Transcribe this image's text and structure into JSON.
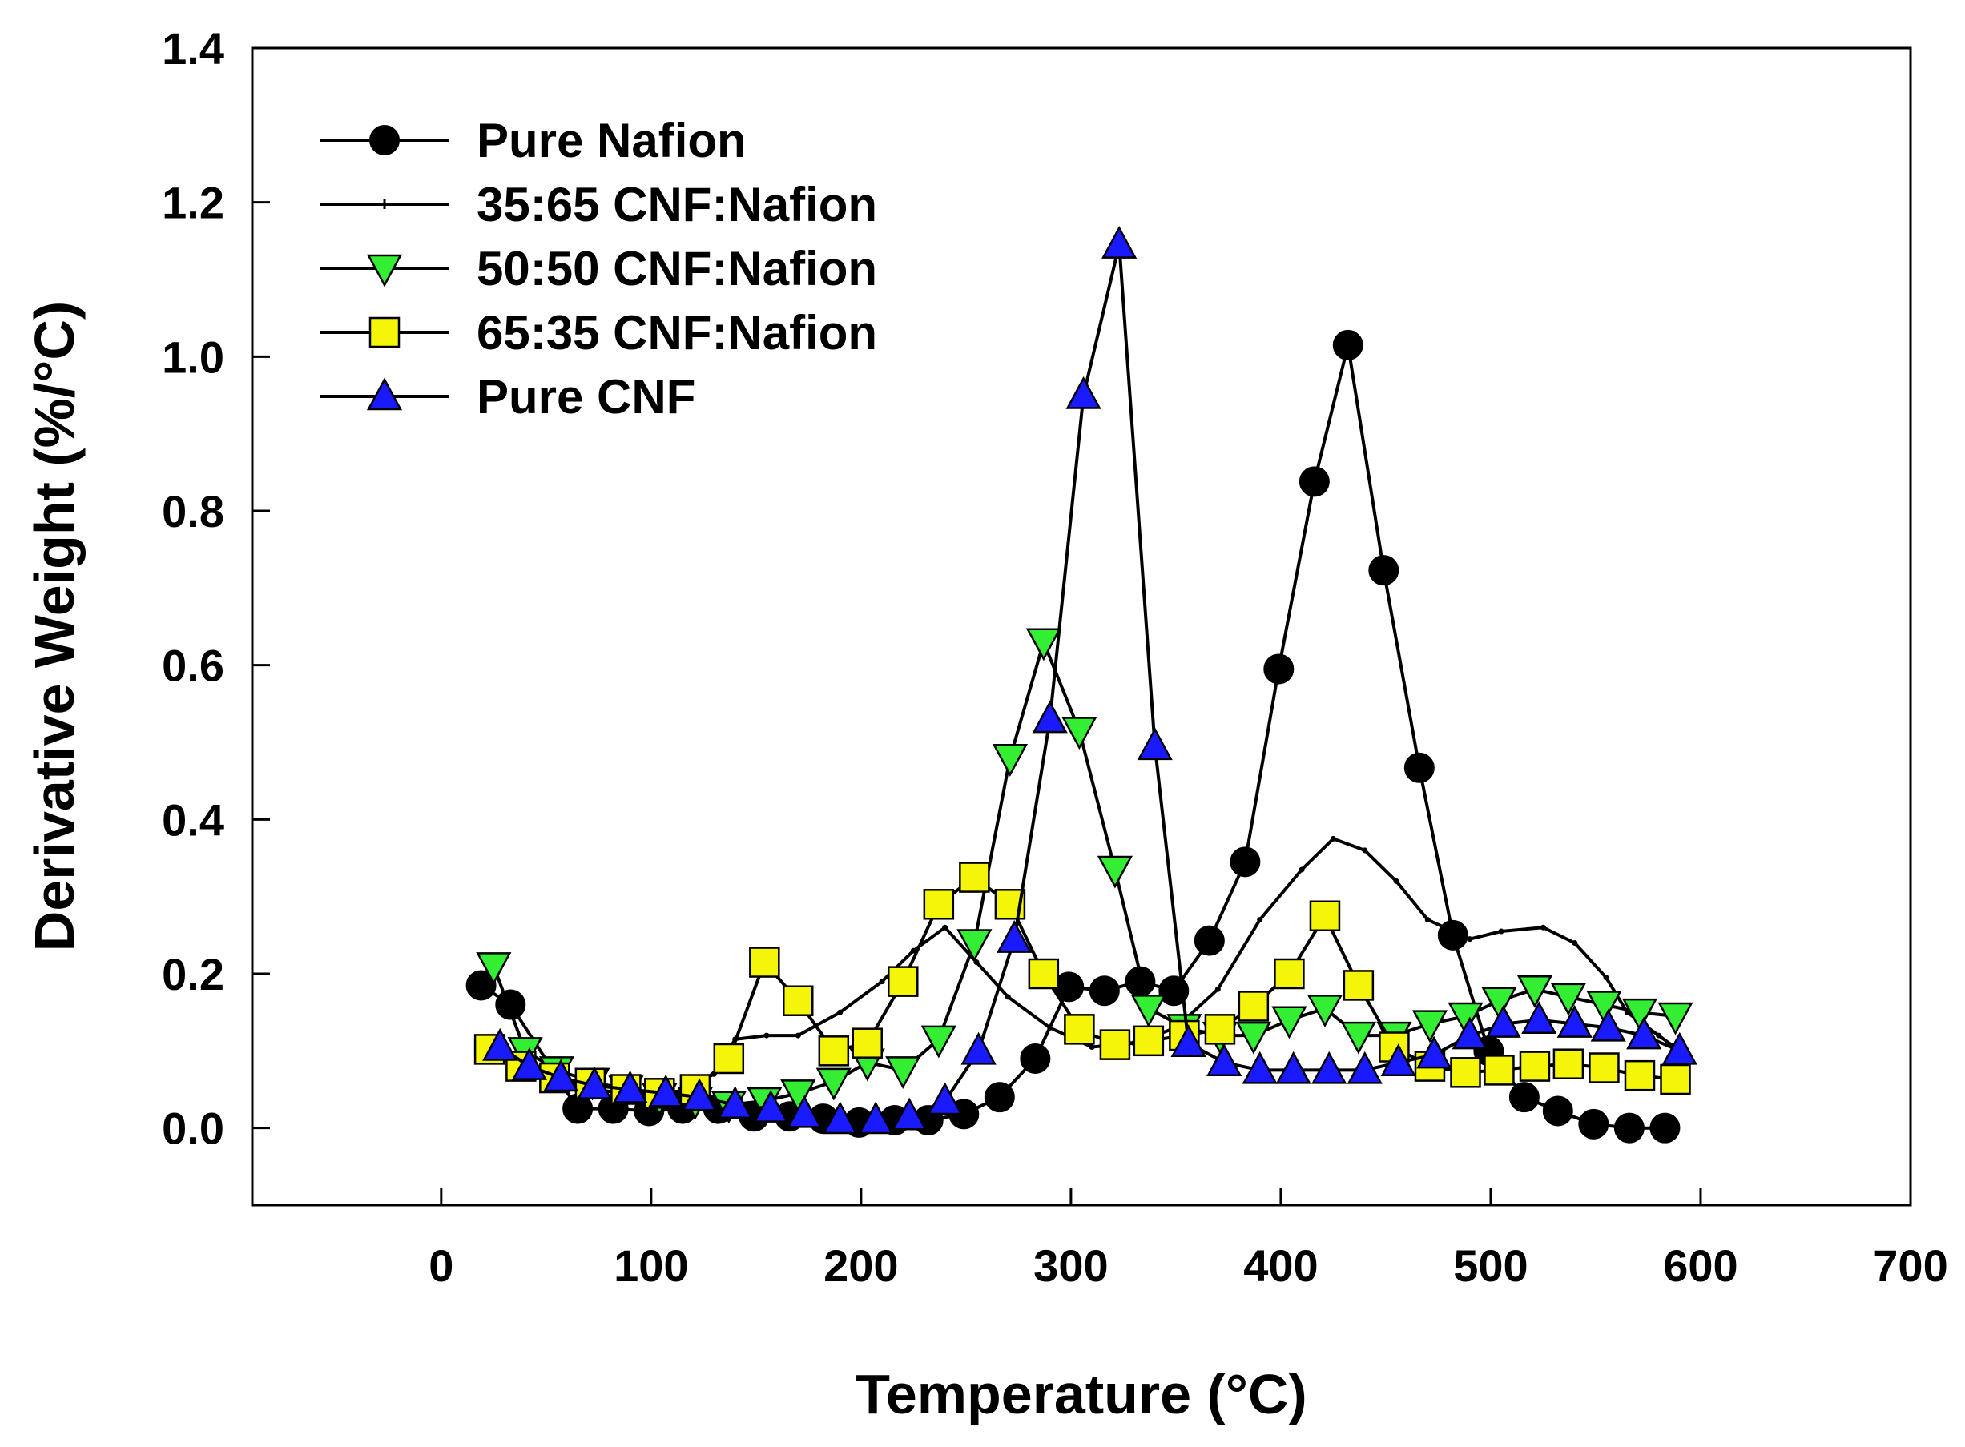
{
  "chart_data": {
    "type": "line",
    "title": "",
    "xlabel": "Temperature (°C)",
    "ylabel": "Derivative Weight (%/°C)",
    "xlim": [
      -90,
      700
    ],
    "ylim": [
      -0.1,
      1.4
    ],
    "xticks": [
      0,
      100,
      200,
      300,
      400,
      500,
      600,
      700
    ],
    "xtick_labels": [
      "0",
      "100",
      "200",
      "300",
      "400",
      "500",
      "600",
      "700"
    ],
    "yticks": [
      0.0,
      0.2,
      0.4,
      0.6,
      0.8,
      1.0,
      1.2,
      1.4
    ],
    "ytick_labels": [
      "0.0",
      "0.2",
      "0.4",
      "0.6",
      "0.8",
      "1.0",
      "1.2",
      "1.4"
    ],
    "legend_position": "top-left",
    "series": [
      {
        "name": "Pure Nafion",
        "marker": "circle",
        "fill": "#000000",
        "x": [
          19,
          33,
          65,
          82,
          99,
          115,
          132,
          149,
          166,
          182,
          199,
          216,
          232,
          249,
          266,
          283,
          299,
          316,
          333,
          349,
          366,
          383,
          399,
          416,
          432,
          449,
          466,
          482,
          499,
          516,
          532,
          549,
          566,
          583
        ],
        "y": [
          0.185,
          0.16,
          0.025,
          0.025,
          0.022,
          0.025,
          0.025,
          0.015,
          0.015,
          0.012,
          0.007,
          0.01,
          0.01,
          0.018,
          0.04,
          0.09,
          0.183,
          0.178,
          0.19,
          0.178,
          0.243,
          0.345,
          0.595,
          0.838,
          1.015,
          0.723,
          0.467,
          0.25,
          0.1,
          0.04,
          0.022,
          0.005,
          0.0,
          0.0
        ]
      },
      {
        "name": "35:65 CNF:Nafion",
        "marker": "tick",
        "fill": "#000000",
        "x": [
          30,
          50,
          70,
          90,
          110,
          130,
          140,
          155,
          170,
          190,
          210,
          225,
          240,
          255,
          270,
          290,
          310,
          330,
          350,
          370,
          390,
          410,
          425,
          440,
          455,
          470,
          490,
          505,
          525,
          540,
          555,
          565,
          580,
          590
        ],
        "y": [
          0.1,
          0.07,
          0.05,
          0.045,
          0.04,
          0.07,
          0.115,
          0.12,
          0.12,
          0.15,
          0.19,
          0.23,
          0.26,
          0.215,
          0.17,
          0.13,
          0.105,
          0.11,
          0.13,
          0.18,
          0.27,
          0.335,
          0.375,
          0.36,
          0.32,
          0.27,
          0.245,
          0.255,
          0.26,
          0.24,
          0.195,
          0.15,
          0.12,
          0.1
        ]
      },
      {
        "name": "50:50 CNF:Nafion",
        "marker": "triangle-down",
        "fill": "#33ee33",
        "x": [
          25,
          40,
          55,
          72,
          88,
          104,
          121,
          137,
          154,
          170,
          187,
          203,
          220,
          237,
          254,
          271,
          287,
          304,
          321,
          337,
          354,
          371,
          387,
          404,
          421,
          437,
          454,
          471,
          488,
          504,
          521,
          537,
          554,
          571,
          588
        ],
        "y": [
          0.21,
          0.1,
          0.075,
          0.06,
          0.05,
          0.04,
          0.035,
          0.03,
          0.035,
          0.045,
          0.06,
          0.085,
          0.075,
          0.115,
          0.24,
          0.48,
          0.63,
          0.515,
          0.335,
          0.155,
          0.13,
          0.12,
          0.12,
          0.14,
          0.155,
          0.12,
          0.12,
          0.135,
          0.145,
          0.165,
          0.18,
          0.17,
          0.16,
          0.15,
          0.145
        ]
      },
      {
        "name": "65:35 CNF:Nafion",
        "marker": "square",
        "fill": "#f5f50a",
        "x": [
          23,
          38,
          54,
          71,
          88,
          104,
          121,
          137,
          154,
          170,
          187,
          203,
          220,
          237,
          254,
          271,
          287,
          304,
          321,
          337,
          354,
          371,
          387,
          404,
          421,
          437,
          454,
          471,
          488,
          504,
          521,
          537,
          554,
          571,
          588
        ],
        "y": [
          0.102,
          0.08,
          0.065,
          0.058,
          0.05,
          0.045,
          0.05,
          0.09,
          0.215,
          0.165,
          0.1,
          0.11,
          0.19,
          0.29,
          0.325,
          0.29,
          0.2,
          0.128,
          0.108,
          0.113,
          0.12,
          0.128,
          0.158,
          0.2,
          0.275,
          0.185,
          0.105,
          0.08,
          0.072,
          0.075,
          0.08,
          0.083,
          0.078,
          0.068,
          0.063
        ]
      },
      {
        "name": "Pure CNF",
        "marker": "triangle-up",
        "fill": "#1a1aff",
        "x": [
          28,
          42,
          57,
          73,
          90,
          107,
          123,
          140,
          157,
          173,
          190,
          207,
          223,
          240,
          256,
          273,
          290,
          306,
          323,
          340,
          356,
          373,
          390,
          406,
          423,
          440,
          456,
          473,
          490,
          506,
          523,
          540,
          556,
          573,
          590
        ],
        "y": [
          0.105,
          0.08,
          0.065,
          0.055,
          0.05,
          0.045,
          0.04,
          0.03,
          0.025,
          0.018,
          0.01,
          0.01,
          0.015,
          0.035,
          0.1,
          0.245,
          0.53,
          0.95,
          1.145,
          0.495,
          0.11,
          0.085,
          0.075,
          0.075,
          0.075,
          0.075,
          0.085,
          0.095,
          0.12,
          0.135,
          0.14,
          0.135,
          0.13,
          0.12,
          0.1
        ]
      }
    ]
  }
}
